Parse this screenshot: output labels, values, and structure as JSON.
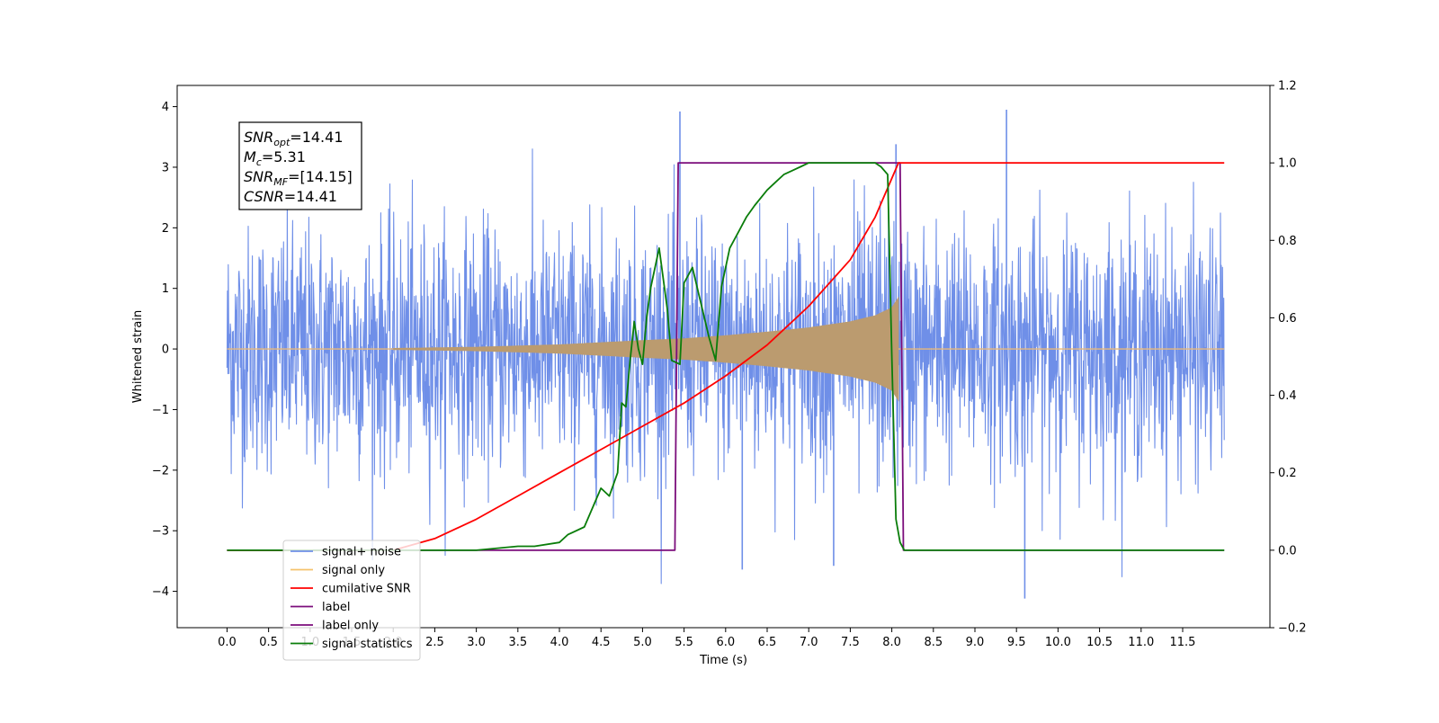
{
  "chart_data": {
    "type": "line",
    "title": "",
    "xlabel": "Time (s)",
    "ylabel": "Whitened strain",
    "xlim": [
      -0.6,
      12.55
    ],
    "ylim": [
      -4.6,
      4.35
    ],
    "y2lim": [
      -0.2,
      1.2
    ],
    "x_ticks": [
      0.0,
      0.5,
      1.0,
      1.5,
      2.0,
      2.5,
      3.0,
      3.5,
      4.0,
      4.5,
      5.0,
      5.5,
      6.0,
      6.5,
      7.0,
      7.5,
      8.0,
      8.5,
      9.0,
      9.5,
      10.0,
      10.5,
      11.0,
      11.5
    ],
    "x_tick_labels": [
      "0.0",
      "0.5",
      "1.0",
      "1.5",
      "2.0",
      "2.5",
      "3.0",
      "3.5",
      "4.0",
      "4.5",
      "5.0",
      "5.5",
      "6.0",
      "6.5",
      "7.0",
      "7.5",
      "8.0",
      "8.5",
      "9.0",
      "9.5",
      "10.0",
      "10.5",
      "11.0",
      "11.5"
    ],
    "y_ticks": [
      4,
      3,
      2,
      1,
      0,
      -1,
      -2,
      -3,
      -4
    ],
    "y_tick_labels": [
      "4",
      "3",
      "2",
      "1",
      "0",
      "−1",
      "−2",
      "−3",
      "−4"
    ],
    "y2_ticks": [
      1.2,
      1.0,
      0.8,
      0.6,
      0.4,
      0.2,
      0.0,
      -0.2
    ],
    "y2_tick_labels": [
      "1.2",
      "1.0",
      "0.8",
      "0.6",
      "0.4",
      "0.2",
      "0.0",
      "−0.2"
    ],
    "grid": false,
    "legend_position": "lower-left",
    "annotation": {
      "snr_opt": "14.41",
      "mc": "5.31",
      "snr_mf": "[14.15]",
      "csnr": "14.41"
    },
    "series": [
      {
        "name": "signal+ noise",
        "color": "#6f8fe8",
        "axis": "left",
        "description": "white noise with std ~1 plus chirp; spikes",
        "x_range": [
          0.0,
          12.0
        ],
        "noise_std": 1.0,
        "spikes": [
          [
            5.45,
            3.92
          ],
          [
            9.38,
            3.95
          ],
          [
            8.05,
            3.38
          ],
          [
            9.6,
            -4.12
          ],
          [
            6.2,
            -3.64
          ],
          [
            7.3,
            -3.58
          ]
        ]
      },
      {
        "name": "signal only",
        "color": "#f5c36b",
        "axis": "left",
        "description": "chirp from 2.0 s to 8.1 s",
        "envelope": [
          [
            2.0,
            0.01
          ],
          [
            3.0,
            0.03
          ],
          [
            4.0,
            0.07
          ],
          [
            5.0,
            0.14
          ],
          [
            5.5,
            0.17
          ],
          [
            6.0,
            0.22
          ],
          [
            6.5,
            0.28
          ],
          [
            7.0,
            0.35
          ],
          [
            7.5,
            0.45
          ],
          [
            7.8,
            0.55
          ],
          [
            8.0,
            0.68
          ],
          [
            8.08,
            0.85
          ]
        ]
      },
      {
        "name": "cumilative SNR",
        "color": "#ff0000",
        "axis": "right",
        "x": [
          0.0,
          2.0,
          2.5,
          3.0,
          3.5,
          4.0,
          4.5,
          5.0,
          5.5,
          6.0,
          6.5,
          7.0,
          7.5,
          7.8,
          8.0,
          8.08,
          8.1,
          12.0
        ],
        "y": [
          0.0,
          0.0,
          0.03,
          0.08,
          0.14,
          0.2,
          0.26,
          0.32,
          0.38,
          0.45,
          0.53,
          0.63,
          0.75,
          0.86,
          0.96,
          1.0,
          1.0,
          1.0
        ]
      },
      {
        "name": "label",
        "color": "#7b0d7b",
        "axis": "right",
        "x": [
          0.0,
          5.39,
          5.43,
          8.1,
          8.14,
          12.0
        ],
        "y": [
          0.0,
          0.0,
          1.0,
          1.0,
          0.0,
          0.0
        ]
      },
      {
        "name": "label only",
        "color": "#7b0d7b",
        "axis": "right",
        "x": [],
        "y": []
      },
      {
        "name": "signal statistics",
        "color": "#0a7d0a",
        "axis": "right",
        "x": [
          0.0,
          2.5,
          3.0,
          3.5,
          3.7,
          4.0,
          4.1,
          4.3,
          4.5,
          4.6,
          4.7,
          4.75,
          4.8,
          4.85,
          4.9,
          4.95,
          5.0,
          5.05,
          5.1,
          5.2,
          5.3,
          5.35,
          5.45,
          5.5,
          5.6,
          5.7,
          5.8,
          5.88,
          5.95,
          6.05,
          6.15,
          6.25,
          6.35,
          6.5,
          6.6,
          6.7,
          6.8,
          6.9,
          7.0,
          7.5,
          7.7,
          7.8,
          7.87,
          7.95,
          8.0,
          8.05,
          8.1,
          8.15,
          12.0
        ],
        "y": [
          0.0,
          0.0,
          0.0,
          0.01,
          0.01,
          0.02,
          0.04,
          0.06,
          0.16,
          0.14,
          0.2,
          0.38,
          0.37,
          0.49,
          0.59,
          0.52,
          0.48,
          0.6,
          0.68,
          0.78,
          0.62,
          0.49,
          0.48,
          0.69,
          0.73,
          0.64,
          0.55,
          0.49,
          0.68,
          0.78,
          0.82,
          0.86,
          0.89,
          0.93,
          0.95,
          0.97,
          0.98,
          0.99,
          1.0,
          1.0,
          1.0,
          1.0,
          0.99,
          0.97,
          0.5,
          0.08,
          0.02,
          0.0,
          0.0
        ]
      }
    ],
    "legend": [
      {
        "label": "signal+ noise",
        "color": "#6f8fe8"
      },
      {
        "label": "signal only",
        "color": "#f5c36b"
      },
      {
        "label": "cumilative SNR",
        "color": "#ff0000"
      },
      {
        "label": "label",
        "color": "#7b0d7b"
      },
      {
        "label": "label only",
        "color": "#7b0d7b"
      },
      {
        "label": "signal statistics",
        "color": "#0a7d0a"
      }
    ]
  }
}
